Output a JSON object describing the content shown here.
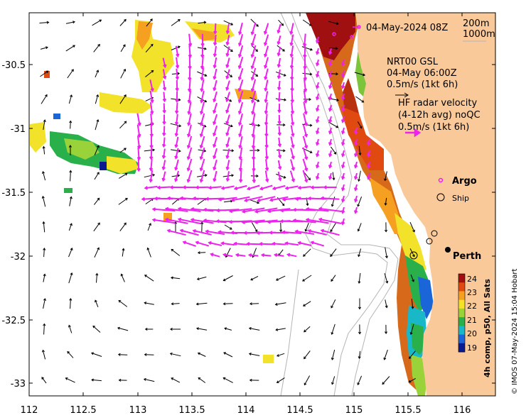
{
  "header": {
    "date_label": "04-May-2024 08Z",
    "depth_200": "200m",
    "depth_1000": "1000m"
  },
  "legend": {
    "gsl_lines": [
      "NRT00 GSL",
      "04-May 06:00Z",
      "0.5m/s (1kt 6h)"
    ],
    "hf_lines": [
      "HF radar velocity",
      "(4-12h avg) noQC",
      "0.5m/s (1kt 6h)"
    ],
    "argo_label": "Argo",
    "ship_label": "Ship"
  },
  "places": {
    "perth": "Perth"
  },
  "colorbar": {
    "title": "4h comp, p50, All Sats",
    "ticks": [
      "24",
      "23",
      "22",
      "21",
      "20",
      "19"
    ],
    "colors": [
      "#a01010",
      "#e04a10",
      "#f5a020",
      "#f2e22a",
      "#9ad23a",
      "#2ab04a",
      "#18b8c8",
      "#1a66d8",
      "#0a1a90"
    ]
  },
  "axes": {
    "x_ticks": [
      "112",
      "112.5",
      "113",
      "113.5",
      "114",
      "114.5",
      "115",
      "115.5",
      "116"
    ],
    "y_ticks": [
      "-30.5",
      "-31",
      "-31.5",
      "-32",
      "-32.5",
      "-33"
    ]
  },
  "credit": "© IMOS 07-May-2024 15:04 Hobart",
  "colors": {
    "land": "#f9c99a",
    "hf_arrow": "#ee22ee",
    "gsl_arrow": "#000000",
    "isobath": "#b4b4b4"
  }
}
